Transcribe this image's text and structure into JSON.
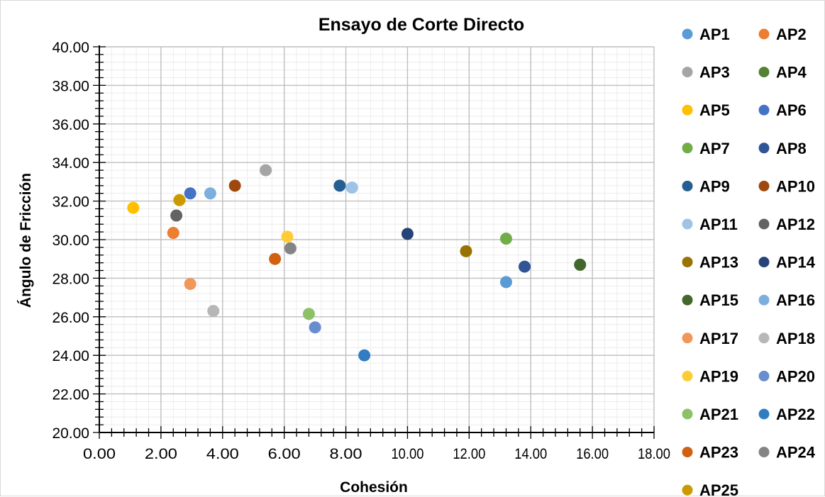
{
  "chart_data": {
    "type": "scatter",
    "title": "Ensayo de Corte Directo",
    "xlabel": "Cohesión",
    "ylabel": "Ángulo de Fricción",
    "xlim": [
      0,
      18
    ],
    "ylim": [
      20,
      40
    ],
    "xticks": [
      "0.00",
      "2.00",
      "4.00",
      "6.00",
      "8.00",
      "10.00",
      "12.00",
      "14.00",
      "16.00",
      "18.00"
    ],
    "yticks": [
      "20.00",
      "22.00",
      "24.00",
      "26.00",
      "28.00",
      "30.00",
      "32.00",
      "34.00",
      "36.00",
      "38.00",
      "40.00"
    ],
    "grid": "major and minor",
    "legend_position": "right",
    "series": [
      {
        "name": "AP1",
        "x": 13.2,
        "y": 27.8,
        "color": "#5b9bd5"
      },
      {
        "name": "AP2",
        "x": 2.4,
        "y": 30.35,
        "color": "#ed7d31"
      },
      {
        "name": "AP3",
        "x": 5.4,
        "y": 33.6,
        "color": "#a5a5a5"
      },
      {
        "name": "AP4",
        "x": 15.6,
        "y": 28.7,
        "color": "#548235"
      },
      {
        "name": "AP5",
        "x": 1.1,
        "y": 31.65,
        "color": "#ffc000"
      },
      {
        "name": "AP6",
        "x": 2.95,
        "y": 32.4,
        "color": "#4472c4"
      },
      {
        "name": "AP7",
        "x": 13.2,
        "y": 30.05,
        "color": "#70ad47"
      },
      {
        "name": "AP8",
        "x": 13.8,
        "y": 28.6,
        "color": "#2f5597"
      },
      {
        "name": "AP9",
        "x": 7.8,
        "y": 32.8,
        "color": "#255e91"
      },
      {
        "name": "AP10",
        "x": 4.4,
        "y": 32.8,
        "color": "#9e480e"
      },
      {
        "name": "AP11",
        "x": 8.2,
        "y": 32.7,
        "color": "#9dc3e6"
      },
      {
        "name": "AP12",
        "x": 2.5,
        "y": 31.25,
        "color": "#636363"
      },
      {
        "name": "AP13",
        "x": 11.9,
        "y": 29.4,
        "color": "#997300"
      },
      {
        "name": "AP14",
        "x": 10.0,
        "y": 30.3,
        "color": "#264478"
      },
      {
        "name": "AP15",
        "x": 15.6,
        "y": 28.7,
        "color": "#43682b"
      },
      {
        "name": "AP16",
        "x": 3.6,
        "y": 32.4,
        "color": "#7cafdd"
      },
      {
        "name": "AP17",
        "x": 2.95,
        "y": 27.7,
        "color": "#f1975a"
      },
      {
        "name": "AP18",
        "x": 3.7,
        "y": 26.3,
        "color": "#b7b7b7"
      },
      {
        "name": "AP19",
        "x": 6.1,
        "y": 30.15,
        "color": "#ffcd33"
      },
      {
        "name": "AP20",
        "x": 7.0,
        "y": 25.45,
        "color": "#698ed0"
      },
      {
        "name": "AP21",
        "x": 6.8,
        "y": 26.15,
        "color": "#8cc168"
      },
      {
        "name": "AP22",
        "x": 8.6,
        "y": 24.0,
        "color": "#327dc2"
      },
      {
        "name": "AP23",
        "x": 5.7,
        "y": 29.0,
        "color": "#d26012"
      },
      {
        "name": "AP24",
        "x": 6.2,
        "y": 29.55,
        "color": "#848484"
      },
      {
        "name": "AP25",
        "x": 2.6,
        "y": 32.05,
        "color": "#cc9a00"
      }
    ]
  }
}
